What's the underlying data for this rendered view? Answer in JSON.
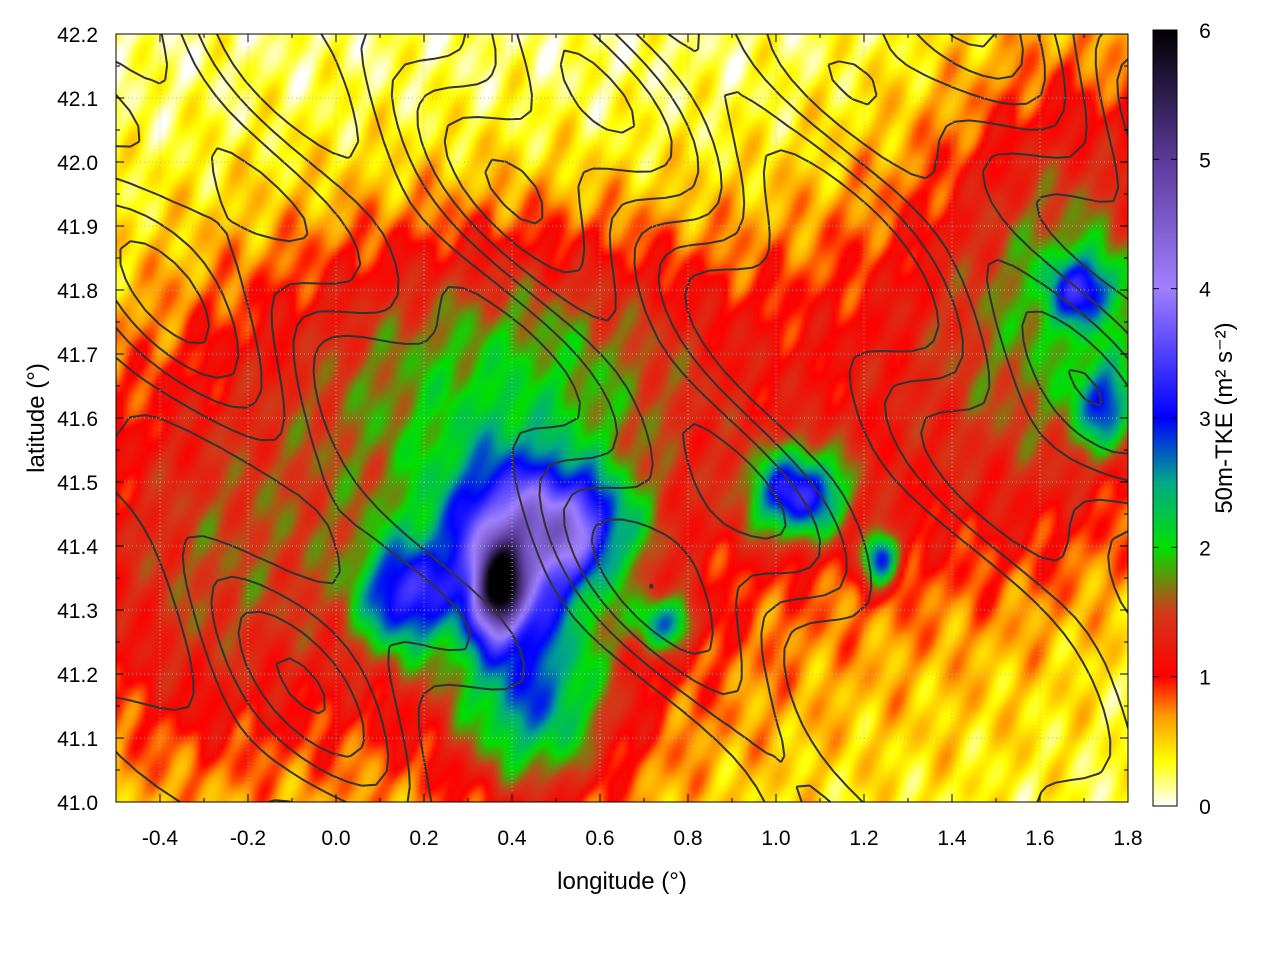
{
  "chart_data": {
    "type": "heatmap",
    "xlabel": "longitude (°)",
    "ylabel": "latitude (°)",
    "colorbar_label": "50m-TKE (m² s⁻²)",
    "xlim": [
      -0.5,
      1.8
    ],
    "ylim": [
      41.0,
      42.2
    ],
    "x_ticks": [
      -0.4,
      -0.2,
      0.0,
      0.2,
      0.4,
      0.6,
      0.8,
      1.0,
      1.2,
      1.4,
      1.6,
      1.8
    ],
    "x_tick_labels": [
      "-0.4",
      "-0.2",
      "0.0",
      "0.2",
      "0.4",
      "0.6",
      "0.8",
      "1.0",
      "1.2",
      "1.4",
      "1.6",
      "1.8"
    ],
    "y_ticks": [
      41.0,
      41.1,
      41.2,
      41.3,
      41.4,
      41.5,
      41.6,
      41.7,
      41.8,
      41.9,
      42.0,
      42.1,
      42.2
    ],
    "y_tick_labels": [
      "41.0",
      "41.1",
      "41.2",
      "41.3",
      "41.4",
      "41.5",
      "41.6",
      "41.7",
      "41.8",
      "41.9",
      "42.0",
      "42.1",
      "42.2"
    ],
    "colorbar_range": [
      0,
      6
    ],
    "colorbar_ticks": [
      0,
      1,
      2,
      3,
      4,
      5,
      6
    ],
    "colorbar_tick_labels": [
      "0",
      "1",
      "2",
      "3",
      "4",
      "5",
      "6"
    ],
    "colormap": [
      {
        "v": 0.0,
        "color": "#ffffff"
      },
      {
        "v": 0.35,
        "color": "#ffff00"
      },
      {
        "v": 0.7,
        "color": "#ff9900"
      },
      {
        "v": 1.0,
        "color": "#ff0000"
      },
      {
        "v": 1.5,
        "color": "#d23a1a"
      },
      {
        "v": 2.0,
        "color": "#00e000"
      },
      {
        "v": 2.5,
        "color": "#00aa88"
      },
      {
        "v": 3.0,
        "color": "#0000ff"
      },
      {
        "v": 4.0,
        "color": "#a080ff"
      },
      {
        "v": 5.0,
        "color": "#5a3a9a"
      },
      {
        "v": 6.0,
        "color": "#000000"
      }
    ],
    "grid": true,
    "tke_blobs": [
      {
        "lon": 0.0,
        "lat": 41.45,
        "slon": 0.55,
        "slat": 0.32,
        "amp": 1.1
      },
      {
        "lon": 0.45,
        "lat": 41.7,
        "slon": 0.35,
        "slat": 0.15,
        "amp": 1.0
      },
      {
        "lon": 1.45,
        "lat": 41.65,
        "slon": 0.35,
        "slat": 0.3,
        "amp": 1.0
      },
      {
        "lon": 1.7,
        "lat": 41.85,
        "slon": 0.2,
        "slat": 0.25,
        "amp": 1.0
      },
      {
        "lon": -0.35,
        "lat": 41.3,
        "slon": 0.2,
        "slat": 0.2,
        "amp": 0.5
      },
      {
        "lon": 0.6,
        "lat": 41.3,
        "slon": 0.4,
        "slat": 0.3,
        "amp": 0.5
      },
      {
        "lon": 0.4,
        "lat": 41.4,
        "slon": 0.12,
        "slat": 0.1,
        "amp": 2.3
      },
      {
        "lon": 0.55,
        "lat": 41.43,
        "slon": 0.1,
        "slat": 0.06,
        "amp": 1.6
      },
      {
        "lon": 0.15,
        "lat": 41.32,
        "slon": 0.07,
        "slat": 0.06,
        "amp": 1.8
      },
      {
        "lon": 0.45,
        "lat": 41.15,
        "slon": 0.12,
        "slat": 0.1,
        "amp": 1.6
      },
      {
        "lon": 1.05,
        "lat": 41.48,
        "slon": 0.08,
        "slat": 0.05,
        "amp": 2.3
      },
      {
        "lon": 0.37,
        "lat": 41.33,
        "slon": 0.04,
        "slat": 0.05,
        "amp": 3.0
      },
      {
        "lon": 1.7,
        "lat": 41.8,
        "slon": 0.06,
        "slat": 0.04,
        "amp": 1.5
      },
      {
        "lon": 1.75,
        "lat": 41.62,
        "slon": 0.05,
        "slat": 0.05,
        "amp": 1.5
      },
      {
        "lon": 0.75,
        "lat": 41.28,
        "slon": 0.05,
        "slat": 0.03,
        "amp": 1.5
      },
      {
        "lon": 1.24,
        "lat": 41.38,
        "slon": 0.03,
        "slat": 0.03,
        "amp": 2.0
      },
      {
        "lon": 1.5,
        "lat": 41.05,
        "slon": 0.3,
        "slat": 0.1,
        "amp": 0.1
      }
    ]
  }
}
